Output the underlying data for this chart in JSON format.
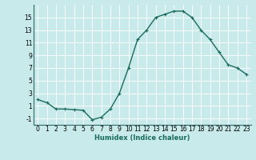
{
  "x": [
    0,
    1,
    2,
    3,
    4,
    5,
    6,
    7,
    8,
    9,
    10,
    11,
    12,
    13,
    14,
    15,
    16,
    17,
    18,
    19,
    20,
    21,
    22,
    23
  ],
  "y": [
    2,
    1.5,
    0.5,
    0.5,
    0.4,
    0.3,
    -1.2,
    -0.8,
    0.5,
    3,
    7,
    11.5,
    13,
    15,
    15.5,
    16,
    16,
    15,
    13,
    11.5,
    9.5,
    7.5,
    7,
    6
  ],
  "line_color": "#1a6b5e",
  "marker_color": "#1a6b5e",
  "bg_color": "#c8eaea",
  "grid_color": "#ffffff",
  "xlabel": "Humidex (Indice chaleur)",
  "ylim": [
    -2,
    17
  ],
  "xlim": [
    -0.5,
    23.5
  ],
  "yticks": [
    -1,
    1,
    3,
    5,
    7,
    9,
    11,
    13,
    15
  ],
  "xticks": [
    0,
    1,
    2,
    3,
    4,
    5,
    6,
    7,
    8,
    9,
    10,
    11,
    12,
    13,
    14,
    15,
    16,
    17,
    18,
    19,
    20,
    21,
    22,
    23
  ],
  "xlabel_fontsize": 6.0,
  "tick_fontsize": 5.5,
  "marker_size": 2.5,
  "line_width": 1.0
}
